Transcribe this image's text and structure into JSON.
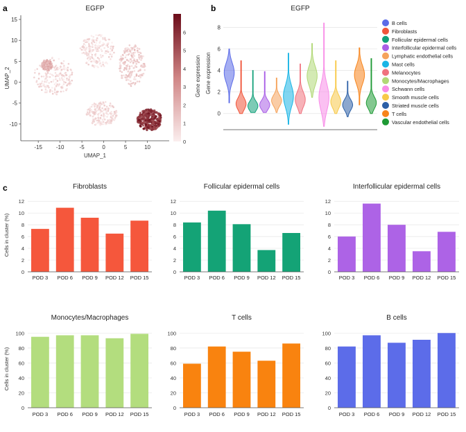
{
  "panel_labels": {
    "a": "a",
    "b": "b",
    "c": "c"
  },
  "chart_data": [
    {
      "type": "scatter",
      "title": "EGFP",
      "xlabel": "UMAP_1",
      "ylabel": "UMAP_2",
      "xticks": [
        -15,
        -10,
        -5,
        0,
        5,
        10
      ],
      "yticks": [
        -10,
        -5,
        0,
        5,
        10,
        15
      ],
      "xlim": [
        -19,
        15
      ],
      "ylim": [
        -14,
        16
      ],
      "colorbar": {
        "label": "Gene expression",
        "min": 0,
        "max": 7,
        "ticks": [
          0,
          1,
          2,
          3,
          4,
          5,
          6
        ]
      },
      "colors": {
        "low": "#fbeeee",
        "mid": "#d08585",
        "high": "#6b0c19"
      },
      "clusters": [
        {
          "name": "left island",
          "cx": -11.5,
          "cy": 1.5,
          "rx": 4.5,
          "ry": 4.5,
          "level": 0.8
        },
        {
          "name": "upper mass",
          "cx": -1.5,
          "cy": 7.5,
          "rx": 4,
          "ry": 4,
          "level": 0.6
        },
        {
          "name": "lower mass",
          "cx": -0.5,
          "cy": -7.5,
          "rx": 3.5,
          "ry": 3,
          "level": 0.7
        },
        {
          "name": "right mass",
          "cx": 6.5,
          "cy": 4,
          "rx": 3,
          "ry": 5,
          "level": 1.2
        },
        {
          "name": "T cell cluster",
          "cx": 10.5,
          "cy": -9,
          "rx": 2.8,
          "ry": 2.5,
          "level": 6.0
        },
        {
          "name": "left fragment",
          "cx": -13,
          "cy": 4,
          "rx": 1.2,
          "ry": 1.3,
          "level": 2.0
        }
      ]
    },
    {
      "type": "violin",
      "title": "EGFP",
      "ylabel": "Gene expression",
      "yticks": [
        0,
        2,
        4,
        6,
        8
      ],
      "ylim": [
        -1.5,
        9
      ],
      "series": [
        {
          "name": "B cells",
          "color": "#5b6be8",
          "center": 3.8,
          "min": 1.0,
          "max": 6.0,
          "spread": 0.9
        },
        {
          "name": "Fibroblasts",
          "color": "#f0553b",
          "center": 0.9,
          "min": 0.0,
          "max": 4.9,
          "spread": 0.55
        },
        {
          "name": "Follicular epidermal cells",
          "color": "#12a07a",
          "center": 0.7,
          "min": 0.1,
          "max": 4.0,
          "spread": 0.45
        },
        {
          "name": "Interfollicular epidermal cells",
          "color": "#a95fe6",
          "center": 0.8,
          "min": 0.1,
          "max": 3.9,
          "spread": 0.45
        },
        {
          "name": "Lymphatic endothelial cells",
          "color": "#f5a35c",
          "center": 1.2,
          "min": 0.1,
          "max": 3.3,
          "spread": 0.5
        },
        {
          "name": "Mast cells",
          "color": "#1ab5e5",
          "center": 1.6,
          "min": -1.0,
          "max": 5.6,
          "spread": 1.0
        },
        {
          "name": "Melanocytes",
          "color": "#f0727e",
          "center": 1.3,
          "min": 0.0,
          "max": 4.6,
          "spread": 0.7
        },
        {
          "name": "Monocytes/Macrophages",
          "color": "#b1d876",
          "center": 3.5,
          "min": 1.5,
          "max": 6.5,
          "spread": 0.9
        },
        {
          "name": "Schwann cells",
          "color": "#f88de8",
          "center": 1.5,
          "min": -1.2,
          "max": 8.4,
          "spread": 1.2
        },
        {
          "name": "Smooth muscle cells",
          "color": "#f7c948",
          "center": 1.1,
          "min": 0.0,
          "max": 4.9,
          "spread": 0.6
        },
        {
          "name": "Striated muscle cells",
          "color": "#2b5fa6",
          "center": 0.8,
          "min": -0.3,
          "max": 3.0,
          "spread": 0.5
        },
        {
          "name": "T cells",
          "color": "#f7841b",
          "center": 3.6,
          "min": 0.8,
          "max": 6.1,
          "spread": 0.85
        },
        {
          "name": "Vascular endothelial cells",
          "color": "#1e9a35",
          "center": 1.0,
          "min": 0.0,
          "max": 5.1,
          "spread": 0.55
        }
      ]
    },
    {
      "type": "bar",
      "title": "Fibroblasts",
      "ylabel": "Cells in cluster (%)",
      "color": "#f5573c",
      "categories": [
        "POD 3",
        "POD 6",
        "POD 9",
        "POD 12",
        "POD 15"
      ],
      "values": [
        7.3,
        10.9,
        9.2,
        6.5,
        8.7
      ],
      "yticks": [
        0,
        2,
        4,
        6,
        8,
        10,
        12
      ],
      "ylim": [
        0,
        12.5
      ]
    },
    {
      "type": "bar",
      "title": "Follicular epidermal cells",
      "ylabel": "",
      "color": "#14a376",
      "categories": [
        "POD 3",
        "POD 6",
        "POD 9",
        "POD 12",
        "POD 15"
      ],
      "values": [
        8.4,
        10.4,
        8.1,
        3.7,
        6.6
      ],
      "yticks": [
        0,
        2,
        4,
        6,
        8,
        10,
        12
      ],
      "ylim": [
        0,
        12.5
      ]
    },
    {
      "type": "bar",
      "title": "Interfollicular epidermal cells",
      "ylabel": "",
      "color": "#ad63e6",
      "categories": [
        "POD 3",
        "POD 6",
        "POD 9",
        "POD 12",
        "POD 15"
      ],
      "values": [
        6.0,
        11.6,
        8.0,
        3.5,
        6.8
      ],
      "yticks": [
        0,
        2,
        4,
        6,
        8,
        10,
        12
      ],
      "ylim": [
        0,
        12.5
      ]
    },
    {
      "type": "bar",
      "title": "Monocytes/Macrophages",
      "ylabel": "Cells in cluster (%)",
      "color": "#b3dd7e",
      "categories": [
        "POD 3",
        "POD 6",
        "POD 9",
        "POD 12",
        "POD 15"
      ],
      "values": [
        95,
        97,
        97,
        93,
        99
      ],
      "yticks": [
        0,
        20,
        40,
        60,
        80,
        100
      ],
      "ylim": [
        0,
        104
      ]
    },
    {
      "type": "bar",
      "title": "T cells",
      "ylabel": "",
      "color": "#f9830f",
      "categories": [
        "POD 3",
        "POD 6",
        "POD 9",
        "POD 12",
        "POD 15"
      ],
      "values": [
        59,
        82,
        75,
        63,
        86
      ],
      "yticks": [
        0,
        20,
        40,
        60,
        80,
        100
      ],
      "ylim": [
        0,
        104
      ]
    },
    {
      "type": "bar",
      "title": "B cells",
      "ylabel": "",
      "color": "#5c6ce9",
      "categories": [
        "POD 3",
        "POD 6",
        "POD 9",
        "POD 12",
        "POD 15"
      ],
      "values": [
        82,
        97,
        87,
        91,
        100
      ],
      "yticks": [
        0,
        20,
        40,
        60,
        80,
        100
      ],
      "ylim": [
        0,
        104
      ]
    }
  ]
}
